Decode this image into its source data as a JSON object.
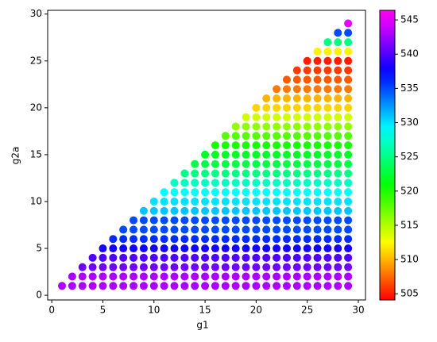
{
  "chart_data": {
    "type": "scatter",
    "x_label": "g1",
    "y_label": "g2a",
    "colormap": "gist_rainbow",
    "xlim": [
      -0.4,
      30.7
    ],
    "ylim": [
      -0.5,
      30.4
    ],
    "xticks": [
      0,
      5,
      10,
      15,
      20,
      25,
      30
    ],
    "yticks": [
      0,
      5,
      10,
      15,
      20,
      25,
      30
    ],
    "clim": [
      504.1,
      546.4
    ],
    "cticks": [
      505,
      510,
      515,
      520,
      525,
      530,
      535,
      540,
      545
    ],
    "x": [
      1,
      2,
      3,
      4,
      5,
      6,
      7,
      8,
      9,
      10,
      11,
      12,
      13,
      14,
      15,
      16,
      17,
      18,
      19,
      20,
      21,
      22,
      23,
      24,
      25,
      26,
      27,
      28,
      29,
      2,
      3,
      4,
      5,
      6,
      7,
      8,
      9,
      10,
      11,
      12,
      13,
      14,
      15,
      16,
      17,
      18,
      19,
      20,
      21,
      22,
      23,
      24,
      25,
      26,
      27,
      28,
      29,
      3,
      4,
      5,
      6,
      7,
      8,
      9,
      10,
      11,
      12,
      13,
      14,
      15,
      16,
      17,
      18,
      19,
      20,
      21,
      22,
      23,
      24,
      25,
      26,
      27,
      28,
      29,
      4,
      5,
      6,
      7,
      8,
      9,
      10,
      11,
      12,
      13,
      14,
      15,
      16,
      17,
      18,
      19,
      20,
      21,
      22,
      23,
      24,
      25,
      26,
      27,
      28,
      29,
      5,
      6,
      7,
      8,
      9,
      10,
      11,
      12,
      13,
      14,
      15,
      16,
      17,
      18,
      19,
      20,
      21,
      22,
      23,
      24,
      25,
      26,
      27,
      28,
      29,
      6,
      7,
      8,
      9,
      10,
      11,
      12,
      13,
      14,
      15,
      16,
      17,
      18,
      19,
      20,
      21,
      22,
      23,
      24,
      25,
      26,
      27,
      28,
      29,
      7,
      8,
      9,
      10,
      11,
      12,
      13,
      14,
      15,
      16,
      17,
      18,
      19,
      20,
      21,
      22,
      23,
      24,
      25,
      26,
      27,
      28,
      29,
      8,
      9,
      10,
      11,
      12,
      13,
      14,
      15,
      16,
      17,
      18,
      19,
      20,
      21,
      22,
      23,
      24,
      25,
      26,
      27,
      28,
      29,
      9,
      10,
      11,
      12,
      13,
      14,
      15,
      16,
      17,
      18,
      19,
      20,
      21,
      22,
      23,
      24,
      25,
      26,
      27,
      28,
      29,
      10,
      11,
      12,
      13,
      14,
      15,
      16,
      17,
      18,
      19,
      20,
      21,
      22,
      23,
      24,
      25,
      26,
      27,
      28,
      29,
      11,
      12,
      13,
      14,
      15,
      16,
      17,
      18,
      19,
      20,
      21,
      22,
      23,
      24,
      25,
      26,
      27,
      28,
      29,
      12,
      13,
      14,
      15,
      16,
      17,
      18,
      19,
      20,
      21,
      22,
      23,
      24,
      25,
      26,
      27,
      28,
      29,
      13,
      14,
      15,
      16,
      17,
      18,
      19,
      20,
      21,
      22,
      23,
      24,
      25,
      26,
      27,
      28,
      29,
      14,
      15,
      16,
      17,
      18,
      19,
      20,
      21,
      22,
      23,
      24,
      25,
      26,
      27,
      28,
      29,
      15,
      16,
      17,
      18,
      19,
      20,
      21,
      22,
      23,
      24,
      25,
      26,
      27,
      28,
      29,
      16,
      17,
      18,
      19,
      20,
      21,
      22,
      23,
      24,
      25,
      26,
      27,
      28,
      29,
      17,
      18,
      19,
      20,
      21,
      22,
      23,
      24,
      25,
      26,
      27,
      28,
      29,
      18,
      19,
      20,
      21,
      22,
      23,
      24,
      25,
      26,
      27,
      28,
      29,
      19,
      20,
      21,
      22,
      23,
      24,
      25,
      26,
      27,
      28,
      29,
      20,
      21,
      22,
      23,
      24,
      25,
      26,
      27,
      28,
      29,
      21,
      22,
      23,
      24,
      25,
      26,
      27,
      28,
      29,
      22,
      23,
      24,
      25,
      26,
      27,
      28,
      29,
      23,
      24,
      25,
      26,
      27,
      28,
      29,
      24,
      25,
      26,
      27,
      28,
      29,
      25,
      26,
      27,
      28,
      29,
      26,
      27,
      28,
      29,
      27,
      28,
      29,
      28,
      29,
      29
    ],
    "y": [
      1,
      1,
      1,
      1,
      1,
      1,
      1,
      1,
      1,
      1,
      1,
      1,
      1,
      1,
      1,
      1,
      1,
      1,
      1,
      1,
      1,
      1,
      1,
      1,
      1,
      1,
      1,
      1,
      1,
      2,
      2,
      2,
      2,
      2,
      2,
      2,
      2,
      2,
      2,
      2,
      2,
      2,
      2,
      2,
      2,
      2,
      2,
      2,
      2,
      2,
      2,
      2,
      2,
      2,
      2,
      2,
      2,
      3,
      3,
      3,
      3,
      3,
      3,
      3,
      3,
      3,
      3,
      3,
      3,
      3,
      3,
      3,
      3,
      3,
      3,
      3,
      3,
      3,
      3,
      3,
      3,
      3,
      3,
      3,
      4,
      4,
      4,
      4,
      4,
      4,
      4,
      4,
      4,
      4,
      4,
      4,
      4,
      4,
      4,
      4,
      4,
      4,
      4,
      4,
      4,
      4,
      4,
      4,
      4,
      4,
      5,
      5,
      5,
      5,
      5,
      5,
      5,
      5,
      5,
      5,
      5,
      5,
      5,
      5,
      5,
      5,
      5,
      5,
      5,
      5,
      5,
      5,
      5,
      5,
      5,
      6,
      6,
      6,
      6,
      6,
      6,
      6,
      6,
      6,
      6,
      6,
      6,
      6,
      6,
      6,
      6,
      6,
      6,
      6,
      6,
      6,
      6,
      6,
      6,
      7,
      7,
      7,
      7,
      7,
      7,
      7,
      7,
      7,
      7,
      7,
      7,
      7,
      7,
      7,
      7,
      7,
      7,
      7,
      7,
      7,
      7,
      7,
      8,
      8,
      8,
      8,
      8,
      8,
      8,
      8,
      8,
      8,
      8,
      8,
      8,
      8,
      8,
      8,
      8,
      8,
      8,
      8,
      8,
      8,
      9,
      9,
      9,
      9,
      9,
      9,
      9,
      9,
      9,
      9,
      9,
      9,
      9,
      9,
      9,
      9,
      9,
      9,
      9,
      9,
      9,
      10,
      10,
      10,
      10,
      10,
      10,
      10,
      10,
      10,
      10,
      10,
      10,
      10,
      10,
      10,
      10,
      10,
      10,
      10,
      10,
      11,
      11,
      11,
      11,
      11,
      11,
      11,
      11,
      11,
      11,
      11,
      11,
      11,
      11,
      11,
      11,
      11,
      11,
      11,
      12,
      12,
      12,
      12,
      12,
      12,
      12,
      12,
      12,
      12,
      12,
      12,
      12,
      12,
      12,
      12,
      12,
      12,
      13,
      13,
      13,
      13,
      13,
      13,
      13,
      13,
      13,
      13,
      13,
      13,
      13,
      13,
      13,
      13,
      13,
      14,
      14,
      14,
      14,
      14,
      14,
      14,
      14,
      14,
      14,
      14,
      14,
      14,
      14,
      14,
      14,
      15,
      15,
      15,
      15,
      15,
      15,
      15,
      15,
      15,
      15,
      15,
      15,
      15,
      15,
      15,
      16,
      16,
      16,
      16,
      16,
      16,
      16,
      16,
      16,
      16,
      16,
      16,
      16,
      16,
      17,
      17,
      17,
      17,
      17,
      17,
      17,
      17,
      17,
      17,
      17,
      17,
      17,
      18,
      18,
      18,
      18,
      18,
      18,
      18,
      18,
      18,
      18,
      18,
      18,
      19,
      19,
      19,
      19,
      19,
      19,
      19,
      19,
      19,
      19,
      19,
      20,
      20,
      20,
      20,
      20,
      20,
      20,
      20,
      20,
      20,
      21,
      21,
      21,
      21,
      21,
      21,
      21,
      21,
      21,
      22,
      22,
      22,
      22,
      22,
      22,
      22,
      22,
      23,
      23,
      23,
      23,
      23,
      23,
      23,
      24,
      24,
      24,
      24,
      24,
      24,
      25,
      25,
      25,
      25,
      25,
      26,
      26,
      26,
      26,
      27,
      27,
      27,
      28,
      28,
      29
    ],
    "values": [
      543,
      543,
      543,
      543,
      543,
      543,
      543,
      543,
      543,
      543,
      543,
      543,
      543,
      543,
      543,
      543,
      543,
      543,
      543,
      543,
      543,
      543,
      543,
      543,
      543,
      543,
      543,
      543,
      543,
      543,
      543,
      543,
      543,
      543,
      543,
      543,
      543,
      543,
      543,
      543,
      543,
      543,
      543,
      543,
      543,
      543,
      543,
      543,
      543,
      543,
      543,
      543,
      543,
      543,
      543,
      543,
      543,
      541,
      541,
      541,
      541,
      541,
      541,
      541,
      541,
      541,
      541,
      541,
      541,
      541,
      541,
      541,
      541,
      541,
      541,
      541,
      541,
      541,
      541,
      541,
      541,
      541,
      541,
      541,
      540,
      540,
      540,
      540,
      540,
      540,
      540,
      540,
      540,
      540,
      540,
      540,
      540,
      540,
      540,
      540,
      540,
      540,
      540,
      540,
      540,
      540,
      540,
      540,
      540,
      540,
      538,
      538,
      538,
      538,
      538,
      538,
      538,
      538,
      538,
      538,
      538,
      538,
      538,
      538,
      538,
      538,
      538,
      538,
      538,
      538,
      538,
      538,
      538,
      538,
      538,
      536,
      536,
      536,
      536,
      536,
      536,
      536,
      536,
      536,
      536,
      536,
      536,
      536,
      536,
      536,
      536,
      536,
      536,
      536,
      536,
      536,
      536,
      536,
      536,
      535,
      535,
      535,
      535,
      535,
      535,
      535,
      535,
      535,
      535,
      535,
      535,
      535,
      535,
      535,
      535,
      535,
      535,
      535,
      535,
      535,
      535,
      535,
      535,
      535,
      535,
      535,
      535,
      535,
      535,
      535,
      535,
      535,
      535,
      535,
      535,
      535,
      535,
      535,
      535,
      535,
      535,
      535,
      535,
      535,
      531,
      531,
      531,
      531,
      531,
      531,
      531,
      531,
      531,
      531,
      531,
      531,
      531,
      531,
      531,
      531,
      531,
      531,
      531,
      531,
      531,
      530,
      530,
      530,
      530,
      530,
      530,
      530,
      530,
      530,
      530,
      530,
      530,
      530,
      530,
      530,
      530,
      530,
      530,
      530,
      530,
      529,
      529,
      529,
      529,
      529,
      529,
      529,
      529,
      529,
      529,
      529,
      529,
      529,
      529,
      529,
      529,
      529,
      529,
      529,
      527,
      527,
      527,
      527,
      527,
      527,
      527,
      527,
      527,
      527,
      527,
      527,
      527,
      527,
      527,
      527,
      527,
      527,
      525,
      525,
      525,
      525,
      525,
      525,
      525,
      525,
      525,
      525,
      525,
      525,
      525,
      525,
      525,
      525,
      525,
      523,
      523,
      523,
      523,
      523,
      523,
      523,
      523,
      523,
      523,
      523,
      523,
      523,
      523,
      523,
      523,
      522,
      522,
      522,
      522,
      522,
      522,
      522,
      522,
      522,
      522,
      522,
      522,
      522,
      522,
      522,
      520,
      520,
      520,
      520,
      520,
      520,
      520,
      520,
      520,
      520,
      520,
      520,
      520,
      520,
      518,
      518,
      518,
      518,
      518,
      518,
      518,
      518,
      518,
      518,
      518,
      518,
      518,
      516,
      516,
      516,
      516,
      516,
      516,
      516,
      516,
      516,
      516,
      516,
      516,
      514,
      514,
      514,
      514,
      514,
      514,
      514,
      514,
      514,
      514,
      514,
      511,
      511,
      511,
      511,
      511,
      511,
      511,
      511,
      511,
      511,
      510,
      510,
      510,
      510,
      510,
      510,
      510,
      510,
      510,
      508,
      508,
      508,
      508,
      508,
      508,
      508,
      508,
      507,
      507,
      507,
      507,
      507,
      507,
      507,
      506,
      506,
      506,
      506,
      506,
      506,
      505,
      505,
      505,
      505,
      505,
      512,
      512,
      512,
      512,
      525,
      525,
      525,
      535,
      535,
      545
    ]
  }
}
